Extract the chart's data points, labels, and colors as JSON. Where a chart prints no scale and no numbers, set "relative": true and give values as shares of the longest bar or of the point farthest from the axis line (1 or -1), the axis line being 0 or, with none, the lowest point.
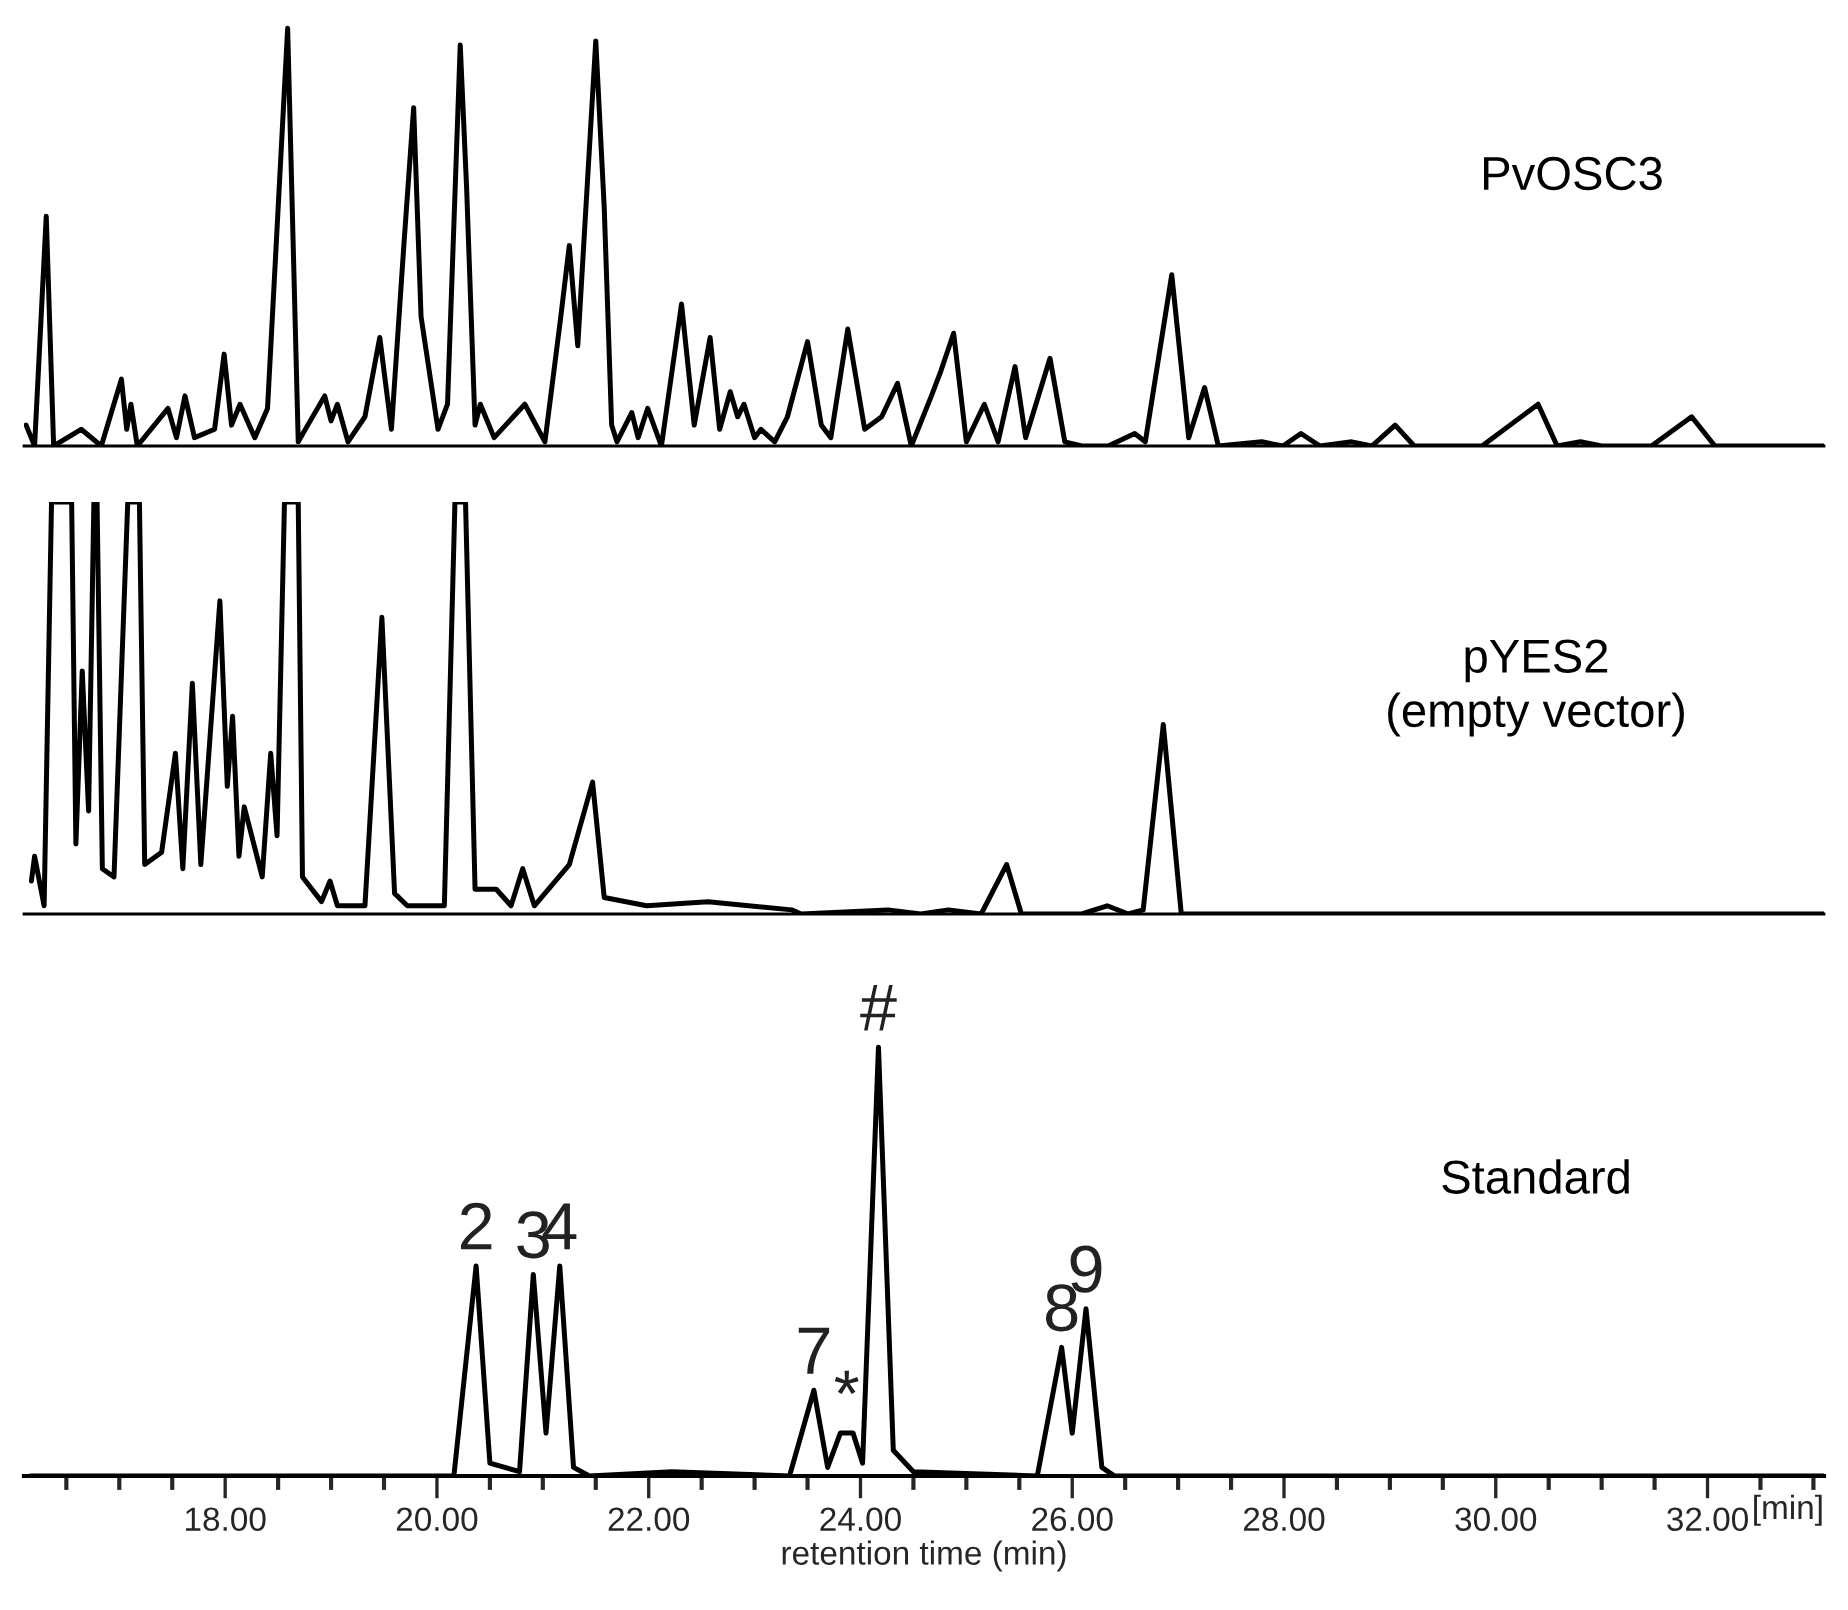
{
  "chart_data": [
    {
      "type": "line",
      "relative": true,
      "xlim": [
        16.1,
        33.1
      ],
      "tick_labels": false,
      "series": [
        {
          "name": "PvOSC3",
          "color": "#000000",
          "x": [
            16.12,
            16.2,
            16.31,
            16.38,
            16.64,
            16.83,
            17.02,
            17.07,
            17.11,
            17.17,
            17.46,
            17.54,
            17.62,
            17.71,
            17.9,
            17.99,
            18.06,
            18.14,
            18.28,
            18.4,
            18.59,
            18.69,
            18.78,
            18.94,
            19.0,
            19.06,
            19.16,
            19.32,
            19.46,
            19.57,
            19.69,
            19.78,
            19.85,
            20.01,
            20.1,
            20.22,
            20.28,
            20.36,
            20.41,
            20.54,
            20.83,
            21.02,
            21.17,
            21.25,
            21.33,
            21.5,
            21.58,
            21.65,
            21.7,
            21.84,
            21.9,
            21.99,
            22.12,
            22.31,
            22.43,
            22.58,
            22.67,
            22.77,
            22.84,
            22.9,
            23.0,
            23.06,
            23.19,
            23.31,
            23.5,
            23.63,
            23.72,
            23.88,
            24.04,
            24.2,
            24.35,
            24.48,
            24.67,
            24.76,
            24.88,
            25.0,
            25.17,
            25.3,
            25.46,
            25.56,
            25.79,
            25.93,
            26.09,
            26.34,
            26.59,
            26.69,
            26.94,
            27.1,
            27.25,
            27.38,
            27.79,
            27.99,
            28.16,
            28.34,
            28.64,
            28.83,
            29.05,
            29.23,
            29.87,
            30.4,
            30.58,
            30.8,
            31.0,
            31.47,
            31.85,
            32.07,
            33.1
          ],
          "values": [
            0.05,
            0,
            0.55,
            0,
            0.04,
            0,
            0.16,
            0.04,
            0.1,
            0,
            0.09,
            0.02,
            0.12,
            0.02,
            0.04,
            0.22,
            0.05,
            0.1,
            0.02,
            0.09,
            1.0,
            0.01,
            0.05,
            0.12,
            0.06,
            0.1,
            0.01,
            0.07,
            0.26,
            0.04,
            0.49,
            0.81,
            0.31,
            0.04,
            0.1,
            0.96,
            0.62,
            0.05,
            0.1,
            0.02,
            0.1,
            0.01,
            0.31,
            0.48,
            0.24,
            0.97,
            0.57,
            0.05,
            0.01,
            0.08,
            0.02,
            0.09,
            0,
            0.34,
            0.05,
            0.26,
            0.04,
            0.13,
            0.07,
            0.1,
            0.02,
            0.04,
            0.01,
            0.07,
            0.25,
            0.05,
            0.02,
            0.28,
            0.04,
            0.07,
            0.15,
            0,
            0.12,
            0.18,
            0.27,
            0.01,
            0.1,
            0.01,
            0.19,
            0.02,
            0.21,
            0.01,
            0,
            0,
            0.03,
            0.01,
            0.41,
            0.02,
            0.14,
            0,
            0.01,
            0,
            0.03,
            0,
            0.01,
            0,
            0.05,
            0,
            0,
            0.1,
            0,
            0.01,
            0,
            0,
            0.07,
            0,
            0
          ]
        }
      ]
    },
    {
      "type": "line",
      "relative": true,
      "xlim": [
        16.1,
        33.1
      ],
      "tick_labels": false,
      "series": [
        {
          "name": "pYES2\n(empty vector)",
          "color": "#000000",
          "x": [
            16.17,
            16.2,
            16.29,
            16.36,
            16.55,
            16.59,
            16.65,
            16.71,
            16.76,
            16.79,
            16.84,
            16.95,
            17.08,
            17.19,
            17.24,
            17.4,
            17.53,
            17.6,
            17.69,
            17.77,
            17.95,
            18.02,
            18.07,
            18.13,
            18.18,
            18.35,
            18.43,
            18.49,
            18.56,
            18.69,
            18.73,
            18.91,
            18.99,
            19.06,
            19.32,
            19.48,
            19.6,
            19.72,
            20.07,
            20.17,
            20.27,
            20.36,
            20.56,
            20.7,
            20.81,
            20.92,
            21.25,
            21.47,
            21.58,
            21.98,
            22.56,
            23.35,
            23.44,
            24.26,
            24.57,
            24.83,
            25.14,
            25.38,
            25.52,
            26.09,
            26.33,
            26.53,
            26.67,
            26.86,
            27.03,
            27.79,
            29.87,
            33.1
          ],
          "values": [
            0.08,
            0.14,
            0.02,
            1.0,
            1.0,
            0.17,
            0.59,
            0.25,
            1.0,
            1.0,
            0.11,
            0.09,
            1.0,
            1.0,
            0.12,
            0.15,
            0.39,
            0.11,
            0.56,
            0.12,
            0.76,
            0.31,
            0.48,
            0.14,
            0.26,
            0.09,
            0.39,
            0.19,
            1.0,
            1.0,
            0.09,
            0.03,
            0.08,
            0.02,
            0.02,
            0.72,
            0.05,
            0.02,
            0.02,
            1.0,
            1.0,
            0.06,
            0.06,
            0.02,
            0.11,
            0.02,
            0.12,
            0.32,
            0.04,
            0.02,
            0.03,
            0.01,
            0,
            0.01,
            0,
            0.01,
            0,
            0.12,
            0,
            0,
            0.02,
            0,
            0.01,
            0.46,
            0,
            0,
            0,
            0
          ]
        }
      ]
    },
    {
      "type": "line",
      "relative": true,
      "xlim": [
        16.1,
        33.1
      ],
      "tick_labels": "x",
      "xlabel": "retention time (min)",
      "xticks": [
        {
          "value": 16.5,
          "label": null
        },
        {
          "value": 17,
          "label": null
        },
        {
          "value": 17.5,
          "label": null
        },
        {
          "value": 18,
          "label": "18.00"
        },
        {
          "value": 18.5,
          "label": null
        },
        {
          "value": 19,
          "label": null
        },
        {
          "value": 19.5,
          "label": null
        },
        {
          "value": 20,
          "label": "20.00"
        },
        {
          "value": 20.5,
          "label": null
        },
        {
          "value": 21,
          "label": null
        },
        {
          "value": 21.5,
          "label": null
        },
        {
          "value": 22,
          "label": "22.00"
        },
        {
          "value": 22.5,
          "label": null
        },
        {
          "value": 23,
          "label": null
        },
        {
          "value": 23.5,
          "label": null
        },
        {
          "value": 24,
          "label": "24.00"
        },
        {
          "value": 24.5,
          "label": null
        },
        {
          "value": 25,
          "label": null
        },
        {
          "value": 25.5,
          "label": null
        },
        {
          "value": 26,
          "label": "26.00"
        },
        {
          "value": 26.5,
          "label": null
        },
        {
          "value": 27,
          "label": null
        },
        {
          "value": 27.5,
          "label": null
        },
        {
          "value": 28,
          "label": "28.00"
        },
        {
          "value": 28.5,
          "label": null
        },
        {
          "value": 29,
          "label": null
        },
        {
          "value": 29.5,
          "label": null
        },
        {
          "value": 30,
          "label": "30.00"
        },
        {
          "value": 30.5,
          "label": null
        },
        {
          "value": 31,
          "label": null
        },
        {
          "value": 31.5,
          "label": null
        },
        {
          "value": 32,
          "label": "32.00"
        },
        {
          "value": 32.5,
          "label": null
        },
        {
          "value": 33,
          "label": null
        }
      ],
      "series": [
        {
          "name": "Standard",
          "color": "#000000",
          "x": [
            16.16,
            20.16,
            20.37,
            20.5,
            20.78,
            20.91,
            21.03,
            21.16,
            21.29,
            21.44,
            22.22,
            23.33,
            23.56,
            23.69,
            23.81,
            23.93,
            24.02,
            24.17,
            24.31,
            24.5,
            25.67,
            25.9,
            26.0,
            26.13,
            26.28,
            26.4,
            33.1
          ],
          "values": [
            0,
            0,
            0.49,
            0.03,
            0.01,
            0.47,
            0.1,
            0.49,
            0.02,
            0,
            0.01,
            0,
            0.2,
            0.02,
            0.1,
            0.1,
            0.03,
            1.0,
            0.06,
            0.01,
            0,
            0.3,
            0.1,
            0.39,
            0.02,
            0,
            0
          ]
        }
      ],
      "annotations": [
        {
          "text": "2",
          "x": 20.37,
          "y": 0.49
        },
        {
          "text": "3",
          "x": 20.91,
          "y": 0.47
        },
        {
          "text": "4",
          "x": 21.16,
          "y": 0.49
        },
        {
          "text": "7",
          "x": 23.56,
          "y": 0.2
        },
        {
          "text": "*",
          "x": 23.87,
          "y": 0.1
        },
        {
          "text": "#",
          "x": 24.17,
          "y": 1.0
        },
        {
          "text": "8",
          "x": 25.9,
          "y": 0.3
        },
        {
          "text": "9",
          "x": 26.13,
          "y": 0.39
        },
        "[min]"
      ]
    }
  ]
}
